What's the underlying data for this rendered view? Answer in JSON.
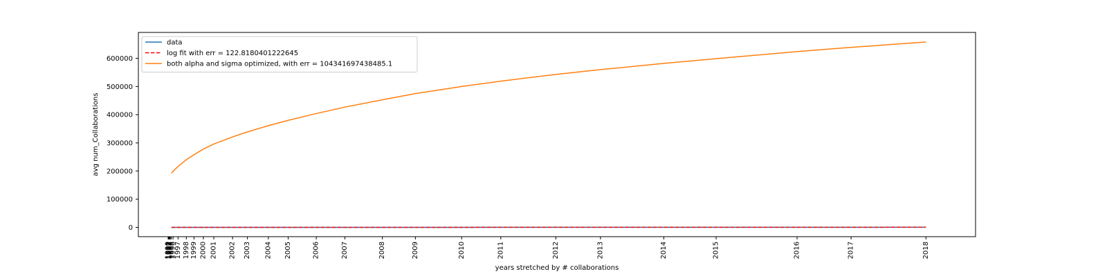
{
  "chart_data": {
    "type": "line",
    "title": "",
    "xlabel": "years stretched by # collaborations",
    "ylabel": "avg num_Collaborations",
    "x_tick_labels": [
      "1990",
      "1991",
      "1992",
      "1993",
      "1994",
      "1995",
      "1996",
      "1997",
      "1998",
      "1999",
      "2000",
      "2001",
      "2002",
      "2003",
      "2004",
      "2005",
      "2006",
      "2007",
      "2008",
      "2009",
      "2010",
      "2011",
      "2012",
      "2013",
      "2014",
      "2015",
      "2016",
      "2017",
      "2018"
    ],
    "x_tick_values": [
      0.4,
      0.5,
      0.6,
      0.7,
      0.8,
      1.0,
      1.3,
      2.2,
      3.7,
      5.1,
      6.8,
      8.7,
      12.1,
      14.8,
      18.6,
      22.2,
      27.3,
      32.5,
      39.3,
      45.3,
      53.7,
      60.8,
      70.8,
      78.9,
      90.4,
      99.9,
      114.6,
      124.4,
      138.0
    ],
    "xlim": [
      -5.0,
      147.0
    ],
    "y_ticks": [
      0,
      100000,
      200000,
      300000,
      400000,
      500000,
      600000
    ],
    "y_tick_labels": [
      "0",
      "100000",
      "200000",
      "300000",
      "400000",
      "500000",
      "600000"
    ],
    "ylim": [
      -33000,
      692000
    ],
    "grid": false,
    "legend_position": "upper left",
    "series": [
      {
        "name": "data",
        "style": "solid",
        "color": "#1f77b4",
        "x": [
          1.0,
          138.0
        ],
        "y": [
          0,
          550
        ]
      },
      {
        "name": "log fit with err = 122.8180401222645",
        "style": "dashed",
        "color": "#ff0000",
        "x": [
          1.0,
          138.0
        ],
        "y": [
          0,
          550
        ]
      },
      {
        "name": "both alpha and sigma optimized, with err = 104341697438485.1",
        "style": "solid",
        "color": "#ff7f0e",
        "x": [
          1.0,
          1.3,
          2.2,
          3.7,
          5.1,
          6.8,
          8.7,
          12.1,
          14.8,
          18.6,
          22.2,
          27.3,
          32.5,
          39.3,
          45.3,
          53.7,
          60.8,
          70.8,
          78.9,
          90.4,
          99.9,
          114.6,
          124.4,
          138.0
        ],
        "y": [
          192000,
          199000,
          216000,
          240000,
          258000,
          278000,
          296000,
          321000,
          339000,
          361000,
          380000,
          404000,
          427000,
          453000,
          475000,
          500000,
          519000,
          543000,
          560000,
          582000,
          599000,
          624000,
          639000,
          658000
        ]
      }
    ]
  }
}
